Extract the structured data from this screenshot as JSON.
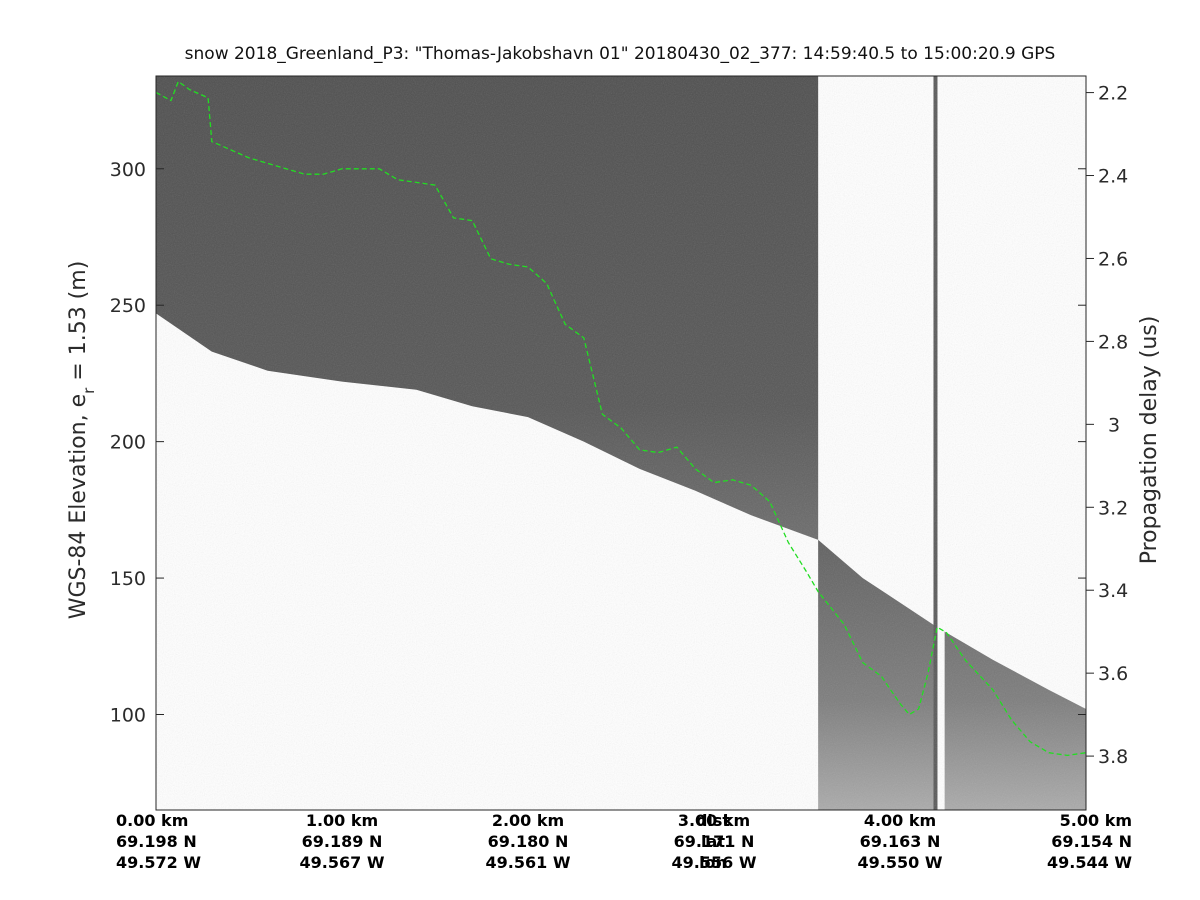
{
  "chart_data": {
    "type": "radar-echogram",
    "title": "snow 2018_Greenland_P3: \"Thomas-Jakobshavn 01\"  20180430_02_377: 14:59:40.5 to 15:00:20.9 GPS",
    "ylabel_left": "WGS-84 Elevation, e",
    "ylabel_left_subscript": "r",
    "ylabel_left_suffix": " = 1.53 (m)",
    "ylabel_right": "Propagation delay (us)",
    "xlim_km": [
      0,
      5
    ],
    "ylim_left_m": [
      65,
      334
    ],
    "ylim_right_us": [
      2.16,
      3.93
    ],
    "left_ticks": [
      {
        "value": 300,
        "label": "300"
      },
      {
        "value": 250,
        "label": "250"
      },
      {
        "value": 200,
        "label": "200"
      },
      {
        "value": 150,
        "label": "150"
      },
      {
        "value": 100,
        "label": "100"
      }
    ],
    "right_ticks": [
      {
        "value": 2.2,
        "label": "2.2"
      },
      {
        "value": 2.4,
        "label": "2.4"
      },
      {
        "value": 2.6,
        "label": "2.6"
      },
      {
        "value": 2.8,
        "label": "2.8"
      },
      {
        "value": 3.0,
        "label": "3"
      },
      {
        "value": 3.2,
        "label": "3.2"
      },
      {
        "value": 3.4,
        "label": "3.4"
      },
      {
        "value": 3.6,
        "label": "3.6"
      },
      {
        "value": 3.8,
        "label": "3.8"
      }
    ],
    "x_rows": [
      {
        "km": 0,
        "dist": "0.00 km",
        "lat": "69.198 N",
        "lon": "49.572 W"
      },
      {
        "km": 1,
        "dist": "1.00 km",
        "lat": "69.189 N",
        "lon": "49.567 W"
      },
      {
        "km": 2,
        "dist": "2.00 km",
        "lat": "69.180 N",
        "lon": "49.561 W"
      },
      {
        "km": 3,
        "dist": "3.00 km",
        "lat": "69.171 N",
        "lon": "49.556 W"
      },
      {
        "km": 4,
        "dist": "4.00 km",
        "lat": "69.163 N",
        "lon": "49.550 W"
      },
      {
        "km": 5,
        "dist": "5.00 km",
        "lat": "69.154 N",
        "lon": "49.544 W"
      }
    ],
    "x_row_labels": {
      "km": 2.5,
      "dist": "dist",
      "lat": "lat",
      "lon": "lon"
    },
    "background_top_end_km": 3.56,
    "gap_start_km": 4.18,
    "gap_end_km": 4.24,
    "thin_strip_km": [
      4.18,
      4.24
    ],
    "surface_line_color": "#22dd22",
    "image_colors": {
      "dark": "#505050",
      "mid": "#808080",
      "light": "#b8b8b8",
      "white": "#ffffff"
    },
    "surface_top": {
      "x_km": [
        0,
        0.3,
        0.6,
        1.0,
        1.4,
        1.7,
        2.0,
        2.3,
        2.6,
        2.9,
        3.2,
        3.56
      ],
      "elev_m": [
        247,
        233,
        226,
        222,
        219,
        213,
        209,
        200,
        190,
        182,
        173,
        164
      ]
    },
    "surface_bottom": {
      "x_km": [
        3.56,
        3.8,
        4.0,
        4.2,
        4.5,
        4.8,
        5.0
      ],
      "elev_m": [
        164,
        150,
        141,
        132,
        120,
        109,
        102
      ]
    },
    "surface_pick": {
      "x_km": [
        0.0,
        0.08,
        0.12,
        0.18,
        0.28,
        0.3,
        0.5,
        0.8,
        0.9,
        1.0,
        1.2,
        1.3,
        1.5,
        1.6,
        1.7,
        1.8,
        1.9,
        2.0,
        2.1,
        2.2,
        2.3,
        2.4,
        2.5,
        2.6,
        2.7,
        2.8,
        2.9,
        3.0,
        3.1,
        3.2,
        3.3,
        3.4,
        3.5,
        3.56,
        3.7,
        3.8,
        3.9,
        4.0,
        4.05,
        4.1,
        4.15,
        4.2,
        4.25,
        4.35,
        4.5,
        4.6,
        4.7,
        4.8,
        4.9,
        5.0
      ],
      "elev_m": [
        328,
        325,
        332,
        329,
        326,
        310,
        304,
        298,
        298,
        300,
        300,
        296,
        294,
        282,
        281,
        267,
        265,
        264,
        258,
        243,
        238,
        210,
        205,
        197,
        196,
        198,
        190,
        185,
        186,
        184,
        178,
        163,
        152,
        145,
        133,
        119,
        114,
        104,
        100,
        102,
        115,
        132,
        130,
        120,
        109,
        98,
        90,
        86,
        85,
        86
      ]
    }
  }
}
